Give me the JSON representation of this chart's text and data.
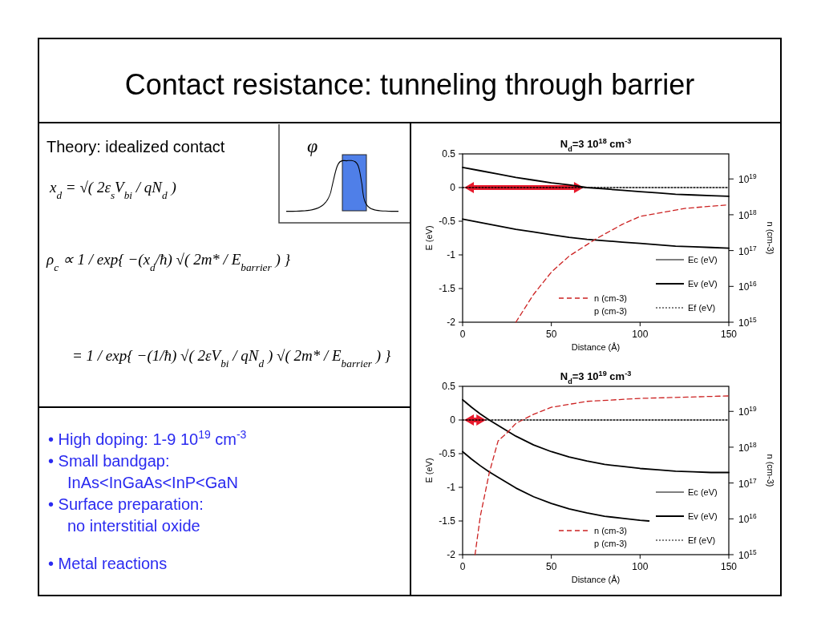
{
  "chart_data": [
    {
      "type": "other",
      "title": "Contact  resistance: tunneling through barrier",
      "annotations": [
        "Theory: idealized contact",
        "φ",
        "x$_{d}$ = √( 2ε$_{s}$V$_{bi}$ / qN$_{d}$ )",
        "ρ$_{c}$ ∝ 1 / exp{ −(x$_{d}$/ħ) √( 2m* / E$_{barrier}$ ) }",
        "= 1 / exp{ −(1/ħ) √( 2εV$_{bi}$ / qN$_{d}$ ) √( 2m* / E$_{barrier}$ ) }",
        "• High doping: 1-9 10$^{19}$ cm$^{-3}$",
        "• Small bandgap:",
        "InAs<InGaAs<InP<GaN",
        "• Surface preparation:",
        "no interstitial oxide",
        "• Metal reactions"
      ]
    },
    {
      "type": "line",
      "title": "N$_{d}$=3 10$^{18}$ cm$^{-3}$",
      "xlabel": "Distance (Å)",
      "ylabel": "E (eV)",
      "y2label": "n (cm-3)",
      "xlim": [
        0,
        150
      ],
      "xticks": [
        0,
        50,
        100,
        150
      ],
      "ylim": [
        -2,
        0.5
      ],
      "yticks": [
        0.5,
        0,
        -0.5,
        -1,
        -1.5,
        -2
      ],
      "y2lim": [
        1000000000000000.0,
        5e+19
      ],
      "y2ticks": [
        {
          "value": 1000000000000000.0,
          "label": "10$^{15}$"
        },
        {
          "value": 1e+16,
          "label": "10$^{16}$"
        },
        {
          "value": 1e+17,
          "label": "10$^{17}$"
        },
        {
          "value": 1e+18,
          "label": "10$^{18}$"
        },
        {
          "value": 1e+19,
          "label": "10$^{19}$"
        }
      ],
      "log": "y2",
      "legend": "bottom right",
      "annotations": [
        "p (cm-3)"
      ],
      "series": [
        {
          "name": "Ec (eV)",
          "color": "#000000",
          "line_style": "solid",
          "x": [
            0,
            10,
            20,
            30,
            40,
            50,
            60,
            70,
            80,
            90,
            100,
            110,
            120,
            130,
            140,
            150
          ],
          "values": [
            0.3,
            0.25,
            0.2,
            0.15,
            0.11,
            0.07,
            0.04,
            0.0,
            -0.02,
            -0.04,
            -0.06,
            -0.08,
            -0.1,
            -0.11,
            -0.12,
            -0.13
          ]
        },
        {
          "name": "Ev (eV)",
          "color": "#000000",
          "line_style": "solid",
          "x": [
            0,
            10,
            20,
            30,
            40,
            50,
            60,
            70,
            80,
            90,
            100,
            110,
            120,
            130,
            140,
            150
          ],
          "values": [
            -0.47,
            -0.52,
            -0.57,
            -0.62,
            -0.66,
            -0.7,
            -0.74,
            -0.77,
            -0.79,
            -0.81,
            -0.83,
            -0.85,
            -0.87,
            -0.88,
            -0.89,
            -0.9
          ]
        },
        {
          "name": "Ef (eV)",
          "color": "#000000",
          "line_style": "dotted",
          "x": [
            0,
            150
          ],
          "values": [
            0,
            0
          ]
        },
        {
          "name": "n (cm-3)",
          "color": "#cc2222",
          "line_style": "dashed",
          "axis": "y2",
          "x": [
            30,
            40,
            50,
            60,
            75,
            90,
            100,
            125,
            150
          ],
          "values": [
            1000000000000000.0,
            6000000000000000.0,
            2.5e+16,
            7e+16,
            2.1e+17,
            5.4e+17,
            9e+17,
            1.5e+18,
            1.9e+18
          ]
        }
      ]
    },
    {
      "type": "line",
      "title": "N$_{d}$=3 10$^{19}$ cm$^{-3}$",
      "xlabel": "Distance (Å)",
      "ylabel": "E (eV)",
      "y2label": "n (cm-3)",
      "xlim": [
        0,
        150
      ],
      "xticks": [
        0,
        50,
        100,
        150
      ],
      "ylim": [
        -2,
        0.5
      ],
      "yticks": [
        0.5,
        0,
        -0.5,
        -1,
        -1.5,
        -2
      ],
      "y2lim": [
        1000000000000000.0,
        5e+19
      ],
      "y2ticks": [
        {
          "value": 1000000000000000.0,
          "label": "10$^{15}$"
        },
        {
          "value": 1e+16,
          "label": "10$^{16}$"
        },
        {
          "value": 1e+17,
          "label": "10$^{17}$"
        },
        {
          "value": 1e+18,
          "label": "10$^{18}$"
        },
        {
          "value": 1e+19,
          "label": "10$^{19}$"
        }
      ],
      "log": "y2",
      "legend": "bottom right",
      "annotations": [
        "p (cm-3)"
      ],
      "series": [
        {
          "name": "Ec (eV)",
          "color": "#000000",
          "line_style": "solid",
          "x": [
            0,
            5,
            10,
            15,
            20,
            30,
            40,
            50,
            60,
            70,
            80,
            90,
            100,
            110,
            120,
            130,
            140,
            150
          ],
          "values": [
            0.3,
            0.19,
            0.09,
            0.0,
            -0.08,
            -0.24,
            -0.37,
            -0.47,
            -0.55,
            -0.61,
            -0.66,
            -0.69,
            -0.72,
            -0.74,
            -0.76,
            -0.77,
            -0.78,
            -0.78
          ]
        },
        {
          "name": "Ev (eV)",
          "color": "#000000",
          "line_style": "solid",
          "x": [
            0,
            5,
            10,
            15,
            20,
            30,
            40,
            50,
            60,
            70,
            80,
            90,
            100,
            105
          ],
          "values": [
            -0.47,
            -0.58,
            -0.68,
            -0.77,
            -0.85,
            -1.01,
            -1.14,
            -1.24,
            -1.32,
            -1.38,
            -1.43,
            -1.46,
            -1.49,
            -1.5
          ]
        },
        {
          "name": "Ef (eV)",
          "color": "#000000",
          "line_style": "dotted",
          "x": [
            0,
            150
          ],
          "values": [
            0,
            0
          ]
        },
        {
          "name": "n (cm-3)",
          "color": "#cc2222",
          "line_style": "dashed",
          "axis": "y2",
          "x": [
            7,
            10,
            15,
            20,
            25,
            30,
            40,
            50,
            70,
            100,
            150
          ],
          "values": [
            1000000000000000.0,
            1.2e+16,
            1.9e+17,
            1.5e+18,
            2.5e+18,
            4.6e+18,
            8.3e+18,
            1.3e+19,
            1.9e+19,
            2.3e+19,
            2.7e+19
          ]
        }
      ]
    }
  ]
}
